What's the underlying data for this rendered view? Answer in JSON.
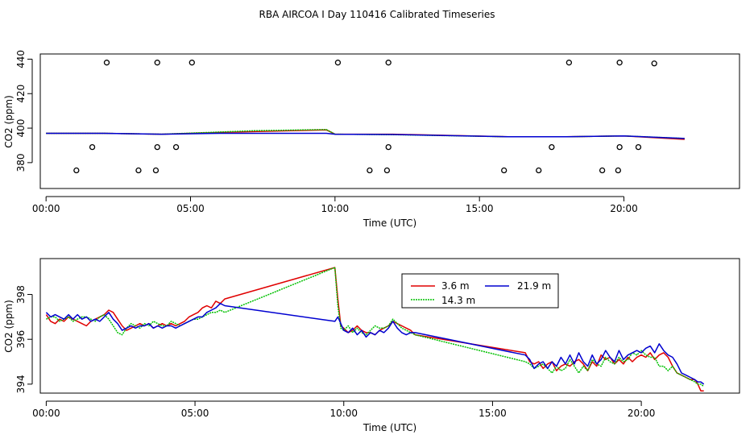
{
  "title": "RBA AIRCOA I  Day 110416  Calibrated Timeseries",
  "colors": {
    "3.6 m": "#e00000",
    "14.3 m": "#00c000",
    "21.9 m": "#0000d0",
    "axis": "#000000"
  },
  "chart_data": [
    {
      "type": "scatter+line",
      "xlabel": "Time (UTC)",
      "ylabel": "CO2 (ppm)",
      "xlim": [
        -0.2,
        24
      ],
      "ylim": [
        365,
        443
      ],
      "xticks": [
        0,
        5,
        10,
        15,
        20
      ],
      "xtick_labels": [
        "00:00",
        "05:00",
        "10:00",
        "15:00",
        "20:00"
      ],
      "yticks": [
        380,
        400,
        420,
        440
      ],
      "ytick_labels": [
        "380",
        "400",
        "420",
        "440"
      ],
      "reference_points": [
        {
          "x": 2.1,
          "y": 438
        },
        {
          "x": 3.85,
          "y": 438
        },
        {
          "x": 5.05,
          "y": 438
        },
        {
          "x": 10.1,
          "y": 438
        },
        {
          "x": 11.85,
          "y": 438
        },
        {
          "x": 18.1,
          "y": 438
        },
        {
          "x": 19.85,
          "y": 438
        },
        {
          "x": 21.05,
          "y": 437.5
        },
        {
          "x": 1.6,
          "y": 389
        },
        {
          "x": 3.85,
          "y": 389
        },
        {
          "x": 4.5,
          "y": 389
        },
        {
          "x": 11.85,
          "y": 389
        },
        {
          "x": 17.5,
          "y": 389
        },
        {
          "x": 19.85,
          "y": 389
        },
        {
          "x": 20.5,
          "y": 389
        },
        {
          "x": 1.05,
          "y": 375.5
        },
        {
          "x": 3.2,
          "y": 375.5
        },
        {
          "x": 3.8,
          "y": 375.5
        },
        {
          "x": 11.2,
          "y": 375.5
        },
        {
          "x": 11.8,
          "y": 375.5
        },
        {
          "x": 15.85,
          "y": 375.5
        },
        {
          "x": 17.05,
          "y": 375.5
        },
        {
          "x": 19.25,
          "y": 375.5
        },
        {
          "x": 19.8,
          "y": 375.5
        }
      ],
      "series": [
        {
          "name": "3.6 m",
          "x": [
            0,
            2,
            4,
            6,
            9.7,
            10,
            12,
            16,
            18,
            20,
            22.1
          ],
          "values": [
            397,
            397,
            396.5,
            397.5,
            399,
            396.5,
            396.5,
            395,
            395,
            395.5,
            393.5
          ]
        },
        {
          "name": "14.3 m",
          "x": [
            0,
            2,
            4,
            7.2,
            9.7,
            10,
            12,
            16,
            18,
            20,
            22.1
          ],
          "values": [
            397,
            397,
            396.5,
            398.5,
            399.2,
            396.5,
            396.2,
            395,
            395,
            395.5,
            394
          ]
        },
        {
          "name": "21.9 m",
          "x": [
            0,
            2,
            4,
            6,
            9.7,
            10,
            12,
            16,
            18,
            20,
            22.1
          ],
          "values": [
            397,
            397,
            396.5,
            397,
            397,
            396.5,
            396.3,
            395,
            395,
            395.5,
            394
          ]
        }
      ]
    },
    {
      "type": "line",
      "xlabel": "Time (UTC)",
      "ylabel": "CO2 (ppm)",
      "xlim": [
        -0.2,
        23.3
      ],
      "ylim": [
        393.6,
        399.6
      ],
      "xticks": [
        0,
        5,
        10,
        15,
        20
      ],
      "xtick_labels": [
        "00:00",
        "05:00",
        "10:00",
        "15:00",
        "20:00"
      ],
      "yticks": [
        394,
        396,
        398
      ],
      "ytick_labels": [
        "394",
        "396",
        "398"
      ],
      "legend": {
        "position": "top-center",
        "entries": [
          "3.6 m",
          "21.9 m",
          "14.3 m"
        ]
      },
      "series": [
        {
          "name": "3.6 m",
          "x": [
            0,
            0.15,
            0.3,
            0.45,
            0.6,
            0.75,
            0.9,
            1.05,
            1.2,
            1.35,
            1.5,
            1.65,
            1.8,
            1.95,
            2.1,
            2.25,
            2.4,
            2.55,
            2.7,
            2.85,
            3.0,
            3.15,
            3.3,
            3.45,
            3.6,
            3.75,
            3.9,
            4.05,
            4.2,
            4.35,
            4.5,
            4.65,
            4.8,
            4.95,
            5.1,
            5.25,
            5.4,
            5.55,
            5.7,
            5.85,
            6.0,
            9.7,
            9.8,
            9.9,
            10.0,
            10.15,
            10.3,
            10.45,
            10.6,
            10.75,
            10.9,
            11.05,
            11.2,
            11.35,
            11.5,
            11.65,
            11.8,
            11.95,
            12.1,
            12.25,
            12.4,
            16.1,
            16.25,
            16.4,
            16.55,
            16.7,
            16.85,
            17.0,
            17.15,
            17.3,
            17.45,
            17.6,
            17.75,
            17.9,
            18.05,
            18.2,
            18.35,
            18.5,
            18.65,
            18.8,
            18.95,
            19.1,
            19.25,
            19.4,
            19.55,
            19.7,
            19.85,
            20.0,
            20.15,
            20.3,
            20.45,
            20.6,
            20.75,
            20.9,
            21.05,
            21.2,
            21.35,
            21.5,
            21.65,
            21.8,
            21.9,
            22.0,
            22.1
          ],
          "values": [
            397.1,
            396.8,
            396.7,
            396.9,
            396.8,
            397.0,
            396.9,
            396.8,
            396.7,
            396.6,
            396.8,
            396.9,
            397.0,
            397.1,
            397.3,
            397.2,
            396.9,
            396.6,
            396.4,
            396.5,
            396.6,
            396.7,
            396.6,
            396.7,
            396.5,
            396.6,
            396.7,
            396.6,
            396.7,
            396.6,
            396.7,
            396.8,
            397.0,
            397.1,
            397.2,
            397.4,
            397.5,
            397.4,
            397.7,
            397.6,
            397.8,
            399.2,
            397.8,
            396.6,
            396.5,
            396.3,
            396.4,
            396.6,
            396.4,
            396.3,
            396.3,
            396.2,
            396.4,
            396.5,
            396.6,
            396.8,
            396.7,
            396.6,
            396.5,
            396.4,
            396.2,
            395.4,
            395.0,
            394.9,
            395.0,
            394.7,
            394.9,
            395.0,
            394.6,
            394.8,
            394.9,
            394.8,
            395.0,
            395.1,
            394.9,
            394.6,
            395.0,
            394.8,
            395.3,
            395.1,
            395.2,
            394.9,
            395.1,
            394.9,
            395.2,
            395.0,
            395.2,
            395.3,
            395.2,
            395.4,
            395.1,
            395.3,
            395.4,
            395.2,
            394.8,
            394.5,
            394.4,
            394.3,
            394.2,
            394.2,
            394.0,
            393.7,
            393.7
          ]
        },
        {
          "name": "14.3 m",
          "x": [
            0,
            0.15,
            0.3,
            0.45,
            0.6,
            0.75,
            0.9,
            1.05,
            1.2,
            1.35,
            1.5,
            1.65,
            1.8,
            1.95,
            2.1,
            2.25,
            2.4,
            2.55,
            2.7,
            2.85,
            3.0,
            3.15,
            3.3,
            3.45,
            3.6,
            3.75,
            3.9,
            4.05,
            4.2,
            4.35,
            4.5,
            4.65,
            4.8,
            4.95,
            5.1,
            5.25,
            5.4,
            5.55,
            5.7,
            5.85,
            6.0,
            9.7,
            9.8,
            9.9,
            10.0,
            10.15,
            10.3,
            10.45,
            10.6,
            10.75,
            10.9,
            11.05,
            11.2,
            11.35,
            11.5,
            11.65,
            11.8,
            11.95,
            12.1,
            12.25,
            12.4,
            16.1,
            16.25,
            16.4,
            16.55,
            16.7,
            16.85,
            17.0,
            17.15,
            17.3,
            17.45,
            17.6,
            17.75,
            17.9,
            18.05,
            18.2,
            18.35,
            18.5,
            18.65,
            18.8,
            18.95,
            19.1,
            19.25,
            19.4,
            19.55,
            19.7,
            19.85,
            20.0,
            20.15,
            20.3,
            20.45,
            20.6,
            20.75,
            20.9,
            21.05,
            21.2,
            21.35,
            21.5,
            21.65,
            21.8,
            21.9,
            22.0,
            22.1
          ],
          "values": [
            396.9,
            397.0,
            397.0,
            396.8,
            396.9,
            397.0,
            396.8,
            396.9,
            397.0,
            397.0,
            396.9,
            396.8,
            397.0,
            397.1,
            396.9,
            396.6,
            396.3,
            396.2,
            396.5,
            396.7,
            396.6,
            396.5,
            396.7,
            396.6,
            396.8,
            396.7,
            396.6,
            396.6,
            396.8,
            396.7,
            396.6,
            396.7,
            396.8,
            396.9,
            396.9,
            397.0,
            397.1,
            397.2,
            397.2,
            397.3,
            397.2,
            399.2,
            397.5,
            396.5,
            396.4,
            396.6,
            396.3,
            396.5,
            396.3,
            396.2,
            396.4,
            396.6,
            396.5,
            396.5,
            396.6,
            396.9,
            396.7,
            396.5,
            396.4,
            396.3,
            396.2,
            395.0,
            394.9,
            394.7,
            394.8,
            394.9,
            394.7,
            394.5,
            394.8,
            394.6,
            394.7,
            395.1,
            394.8,
            394.5,
            394.8,
            394.6,
            395.1,
            394.9,
            394.8,
            395.2,
            395.0,
            394.9,
            395.2,
            395.0,
            395.1,
            395.4,
            395.3,
            395.5,
            395.3,
            395.2,
            395.2,
            394.8,
            394.8,
            394.6,
            394.8,
            394.5,
            394.4,
            394.3,
            394.2,
            394.1,
            394.0,
            394.0,
            393.9
          ]
        },
        {
          "name": "21.9 m",
          "x": [
            0,
            0.15,
            0.3,
            0.45,
            0.6,
            0.75,
            0.9,
            1.05,
            1.2,
            1.35,
            1.5,
            1.65,
            1.8,
            1.95,
            2.1,
            2.25,
            2.4,
            2.55,
            2.7,
            2.85,
            3.0,
            3.15,
            3.3,
            3.45,
            3.6,
            3.75,
            3.9,
            4.05,
            4.2,
            4.35,
            4.5,
            4.65,
            4.8,
            4.95,
            5.1,
            5.25,
            5.4,
            5.55,
            5.7,
            5.85,
            6.0,
            9.7,
            9.8,
            9.9,
            10.0,
            10.15,
            10.3,
            10.45,
            10.6,
            10.75,
            10.9,
            11.05,
            11.2,
            11.35,
            11.5,
            11.65,
            11.8,
            11.95,
            12.1,
            12.25,
            12.4,
            16.1,
            16.25,
            16.4,
            16.55,
            16.7,
            16.85,
            17.0,
            17.15,
            17.3,
            17.45,
            17.6,
            17.75,
            17.9,
            18.05,
            18.2,
            18.35,
            18.5,
            18.65,
            18.8,
            18.95,
            19.1,
            19.25,
            19.4,
            19.55,
            19.7,
            19.85,
            20.0,
            20.15,
            20.3,
            20.45,
            20.6,
            20.75,
            20.9,
            21.05,
            21.2,
            21.35,
            21.5,
            21.65,
            21.8,
            21.9,
            22.0,
            22.1
          ],
          "values": [
            397.2,
            397.0,
            397.1,
            397.0,
            396.9,
            397.1,
            396.9,
            397.1,
            396.9,
            397.0,
            396.8,
            396.9,
            396.8,
            397.0,
            397.2,
            396.9,
            396.7,
            396.4,
            396.5,
            396.6,
            396.5,
            396.6,
            396.6,
            396.7,
            396.5,
            396.6,
            396.5,
            396.6,
            396.6,
            396.5,
            396.6,
            396.7,
            396.8,
            396.9,
            397.0,
            397.0,
            397.2,
            397.3,
            397.4,
            397.6,
            397.5,
            396.8,
            397.0,
            396.7,
            396.4,
            396.3,
            396.5,
            396.2,
            396.4,
            396.1,
            396.3,
            396.2,
            396.4,
            396.3,
            396.5,
            396.8,
            396.5,
            396.3,
            396.2,
            396.3,
            396.3,
            395.3,
            395.1,
            394.7,
            394.9,
            395.0,
            394.7,
            395.0,
            394.8,
            395.2,
            394.9,
            395.3,
            394.9,
            395.4,
            395.0,
            394.8,
            395.3,
            394.9,
            395.1,
            395.5,
            395.2,
            395.0,
            395.5,
            395.1,
            395.3,
            395.4,
            395.5,
            395.4,
            395.6,
            395.7,
            395.4,
            395.8,
            395.5,
            395.3,
            395.2,
            394.9,
            394.5,
            394.4,
            394.3,
            394.2,
            394.1,
            394.1,
            394.0
          ]
        }
      ]
    }
  ]
}
